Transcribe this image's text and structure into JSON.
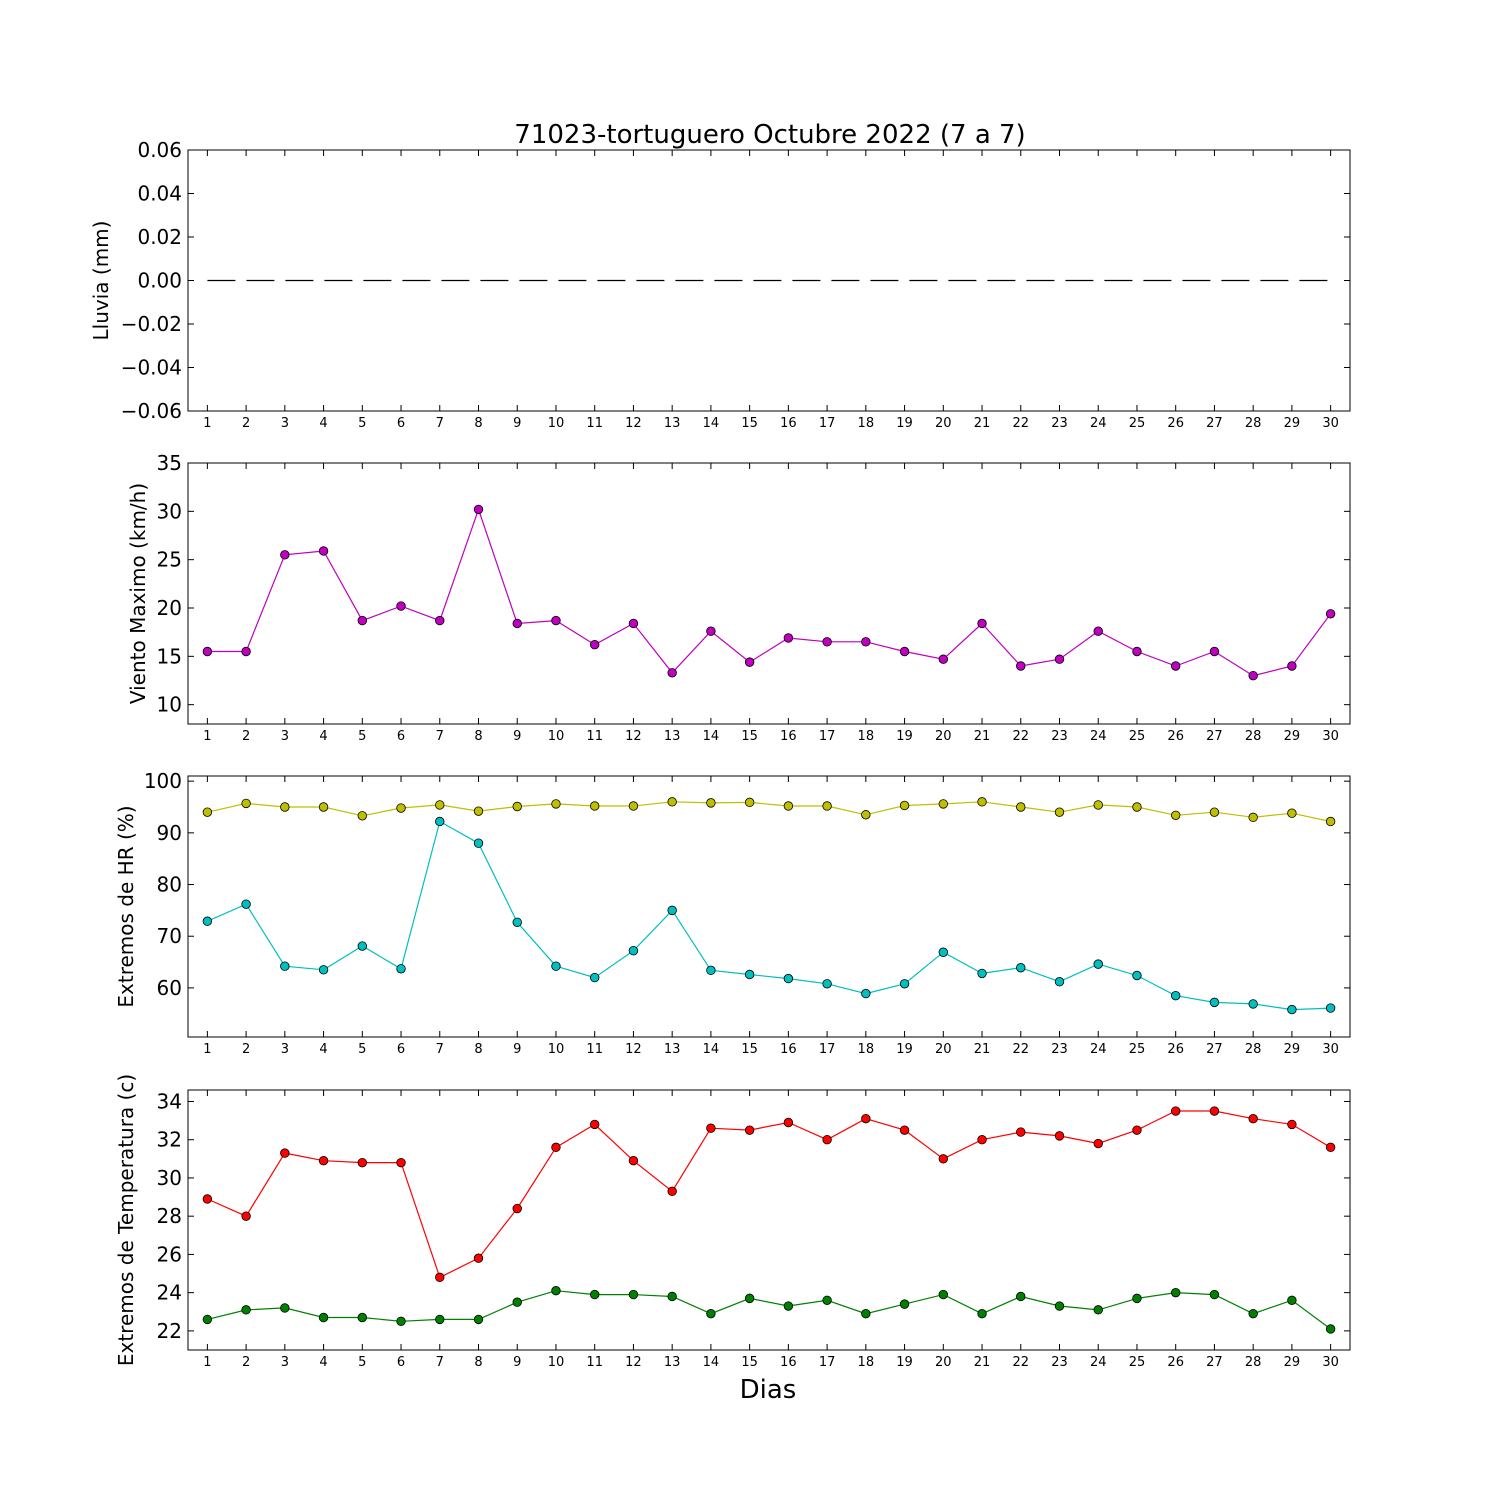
{
  "title": "71023-tortuguero Octubre 2022  (7 a 7)",
  "xlabel": "Dias",
  "chart_data": [
    {
      "type": "line",
      "ylabel": "Lluvia (mm)",
      "ylim": [
        -0.06,
        0.06
      ],
      "yticks": [
        -0.06,
        -0.04,
        -0.02,
        0.0,
        0.02,
        0.04,
        0.06
      ],
      "ytick_labels": [
        "−0.06",
        "−0.04",
        "−0.02",
        "0.00",
        "0.02",
        "0.04",
        "0.06"
      ],
      "x": [
        1,
        2,
        3,
        4,
        5,
        6,
        7,
        8,
        9,
        10,
        11,
        12,
        13,
        14,
        15,
        16,
        17,
        18,
        19,
        20,
        21,
        22,
        23,
        24,
        25,
        26,
        27,
        28,
        29,
        30
      ],
      "series": [
        {
          "color": "#000000",
          "style": "dashed",
          "markers": false,
          "values": [
            0,
            0,
            0,
            0,
            0,
            0,
            0,
            0,
            0,
            0,
            0,
            0,
            0,
            0,
            0,
            0,
            0,
            0,
            0,
            0,
            0,
            0,
            0,
            0,
            0,
            0,
            0,
            0,
            0,
            0
          ]
        }
      ]
    },
    {
      "type": "line",
      "ylabel": "Viento Maximo (km/h)",
      "ylim": [
        8,
        35
      ],
      "yticks": [
        10,
        15,
        20,
        25,
        30,
        35
      ],
      "ytick_labels": [
        "10",
        "15",
        "20",
        "25",
        "30",
        "35"
      ],
      "x": [
        1,
        2,
        3,
        4,
        5,
        6,
        7,
        8,
        9,
        10,
        11,
        12,
        13,
        14,
        15,
        16,
        17,
        18,
        19,
        20,
        21,
        22,
        23,
        24,
        25,
        26,
        27,
        28,
        29,
        30
      ],
      "series": [
        {
          "color": "#bf00bf",
          "style": "solid",
          "markers": true,
          "values": [
            15.5,
            15.5,
            25.5,
            25.9,
            18.7,
            20.2,
            18.7,
            30.2,
            18.4,
            18.7,
            16.2,
            18.4,
            13.3,
            17.6,
            14.4,
            16.9,
            16.5,
            16.5,
            15.5,
            14.7,
            18.4,
            14.0,
            14.7,
            17.6,
            15.5,
            14.0,
            15.5,
            13.0,
            14.0,
            19.4
          ]
        }
      ]
    },
    {
      "type": "line",
      "ylabel": "Extremos de HR (%)",
      "ylim": [
        50.5,
        101
      ],
      "yticks": [
        60,
        70,
        80,
        90,
        100
      ],
      "ytick_labels": [
        "60",
        "70",
        "80",
        "90",
        "100"
      ],
      "x": [
        1,
        2,
        3,
        4,
        5,
        6,
        7,
        8,
        9,
        10,
        11,
        12,
        13,
        14,
        15,
        16,
        17,
        18,
        19,
        20,
        21,
        22,
        23,
        24,
        25,
        26,
        27,
        28,
        29,
        30
      ],
      "series": [
        {
          "color": "#bfbf00",
          "style": "solid",
          "markers": true,
          "values": [
            94.0,
            95.7,
            95.0,
            95.0,
            93.3,
            94.8,
            95.4,
            94.2,
            95.1,
            95.6,
            95.2,
            95.2,
            96.0,
            95.8,
            95.9,
            95.2,
            95.2,
            93.5,
            95.3,
            95.6,
            96.0,
            95.0,
            94.0,
            95.4,
            95.0,
            93.4,
            94.0,
            93.0,
            93.8,
            92.2
          ]
        },
        {
          "color": "#00bfbf",
          "style": "solid",
          "markers": true,
          "values": [
            72.9,
            76.2,
            64.2,
            63.5,
            68.1,
            63.7,
            92.2,
            88.0,
            72.7,
            64.2,
            62.0,
            67.2,
            75.0,
            63.4,
            62.6,
            61.8,
            60.8,
            58.9,
            60.8,
            66.9,
            62.8,
            63.9,
            61.2,
            64.6,
            62.4,
            58.5,
            57.2,
            56.9,
            55.8,
            56.1
          ]
        }
      ]
    },
    {
      "type": "line",
      "ylabel": "Extremos de Temperatura (c)",
      "ylim": [
        21,
        34.6
      ],
      "yticks": [
        22,
        24,
        26,
        28,
        30,
        32,
        34
      ],
      "ytick_labels": [
        "22",
        "24",
        "26",
        "28",
        "30",
        "32",
        "34"
      ],
      "x": [
        1,
        2,
        3,
        4,
        5,
        6,
        7,
        8,
        9,
        10,
        11,
        12,
        13,
        14,
        15,
        16,
        17,
        18,
        19,
        20,
        21,
        22,
        23,
        24,
        25,
        26,
        27,
        28,
        29,
        30
      ],
      "series": [
        {
          "color": "#ff0000",
          "style": "solid",
          "markers": true,
          "values": [
            28.9,
            28.0,
            31.3,
            30.9,
            30.8,
            30.8,
            24.8,
            25.8,
            28.4,
            31.6,
            32.8,
            30.9,
            29.3,
            32.6,
            32.5,
            32.9,
            32.0,
            33.1,
            32.5,
            31.0,
            32.0,
            32.4,
            32.2,
            31.8,
            32.5,
            33.5,
            33.5,
            33.1,
            32.8,
            31.6
          ]
        },
        {
          "color": "#008000",
          "style": "solid",
          "markers": true,
          "values": [
            22.6,
            23.1,
            23.2,
            22.7,
            22.7,
            22.5,
            22.6,
            22.6,
            23.5,
            24.1,
            23.9,
            23.9,
            23.8,
            22.9,
            23.7,
            23.3,
            23.6,
            22.9,
            23.4,
            23.9,
            22.9,
            23.8,
            23.3,
            23.1,
            23.7,
            24.0,
            23.9,
            22.9,
            23.6,
            22.1
          ]
        }
      ]
    }
  ]
}
